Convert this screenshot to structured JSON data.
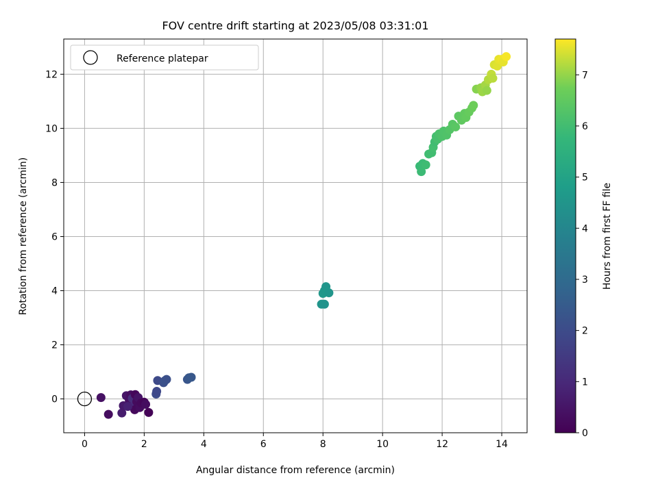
{
  "chart_data": {
    "type": "scatter",
    "title": "FOV centre drift starting at 2023/05/08 03:31:01",
    "xlabel": "Angular distance from reference (arcmin)",
    "ylabel": "Rotation from reference (arcmin)",
    "xlim": [
      -0.7,
      14.85
    ],
    "ylim": [
      -1.25,
      13.3
    ],
    "xticks": [
      0,
      2,
      4,
      6,
      8,
      10,
      12,
      14
    ],
    "yticks": [
      0,
      2,
      4,
      6,
      8,
      10,
      12
    ],
    "grid": true,
    "legend": {
      "placement": "top-left",
      "entries": [
        "Reference platepar"
      ]
    },
    "reference_point": {
      "x": 0,
      "y": 0,
      "marker": "hollow-circle"
    },
    "colorbar": {
      "label": "Hours from first FF file",
      "range": [
        0,
        7.7
      ],
      "ticks": [
        0,
        1,
        2,
        3,
        4,
        5,
        6,
        7
      ],
      "colormap": "viridis"
    },
    "series": [
      {
        "values_note": "",
        "points": [
          [
            0.55,
            0.05,
            0.4
          ],
          [
            0.8,
            -0.57,
            0.3
          ],
          [
            1.25,
            -0.52,
            0.7
          ],
          [
            1.3,
            -0.25,
            0.6
          ],
          [
            1.4,
            0.12,
            0.5
          ],
          [
            1.5,
            -0.05,
            0.35
          ],
          [
            1.55,
            0.15,
            0.3
          ],
          [
            1.6,
            0.02,
            1.1
          ],
          [
            1.62,
            -0.28,
            1.0
          ],
          [
            1.68,
            -0.4,
            0.2
          ],
          [
            1.7,
            0.16,
            0.15
          ],
          [
            1.75,
            -0.1,
            0.25
          ],
          [
            1.8,
            0.05,
            0.45
          ],
          [
            1.85,
            -0.32,
            0.3
          ],
          [
            1.9,
            -0.15,
            0.2
          ],
          [
            2.0,
            -0.12,
            0.1
          ],
          [
            2.05,
            -0.2,
            0.3
          ],
          [
            2.15,
            -0.5,
            0.05
          ],
          [
            1.45,
            -0.28,
            0.8
          ],
          [
            2.4,
            0.18,
            2.0
          ],
          [
            2.42,
            0.28,
            1.9
          ],
          [
            2.45,
            0.68,
            1.95
          ],
          [
            2.65,
            0.6,
            2.1
          ],
          [
            2.7,
            0.68,
            2.2
          ],
          [
            2.75,
            0.72,
            2.15
          ],
          [
            3.45,
            0.72,
            2.3
          ],
          [
            3.5,
            0.78,
            2.35
          ],
          [
            3.58,
            0.8,
            2.4
          ],
          [
            7.95,
            3.5,
            4.5
          ],
          [
            8.05,
            3.5,
            4.45
          ],
          [
            8.0,
            3.9,
            4.6
          ],
          [
            8.05,
            4.0,
            4.55
          ],
          [
            8.1,
            4.15,
            4.5
          ],
          [
            8.15,
            3.95,
            4.6
          ],
          [
            8.2,
            3.92,
            4.52
          ],
          [
            11.25,
            8.6,
            5.85
          ],
          [
            11.3,
            8.4,
            5.9
          ],
          [
            11.35,
            8.7,
            5.88
          ],
          [
            11.45,
            8.65,
            5.95
          ],
          [
            11.55,
            9.05,
            5.97
          ],
          [
            11.65,
            9.1,
            6.0
          ],
          [
            11.7,
            9.3,
            6.05
          ],
          [
            11.75,
            9.5,
            6.0
          ],
          [
            11.8,
            9.7,
            6.05
          ],
          [
            11.85,
            9.6,
            6.1
          ],
          [
            11.9,
            9.8,
            6.15
          ],
          [
            12.0,
            9.7,
            6.2
          ],
          [
            12.05,
            9.9,
            6.22
          ],
          [
            12.15,
            9.75,
            6.25
          ],
          [
            12.25,
            9.95,
            6.3
          ],
          [
            12.35,
            10.15,
            6.35
          ],
          [
            12.45,
            10.05,
            6.4
          ],
          [
            12.55,
            10.45,
            6.45
          ],
          [
            12.65,
            10.3,
            6.5
          ],
          [
            12.75,
            10.55,
            6.52
          ],
          [
            12.8,
            10.4,
            6.55
          ],
          [
            12.9,
            10.6,
            6.6
          ],
          [
            13.0,
            10.75,
            6.65
          ],
          [
            13.05,
            10.85,
            6.7
          ],
          [
            13.15,
            11.45,
            6.9
          ],
          [
            13.3,
            11.5,
            7.0
          ],
          [
            13.35,
            11.35,
            7.05
          ],
          [
            13.45,
            11.6,
            7.1
          ],
          [
            13.5,
            11.4,
            7.0
          ],
          [
            13.55,
            11.8,
            7.2
          ],
          [
            13.65,
            12.0,
            7.3
          ],
          [
            13.7,
            11.85,
            7.25
          ],
          [
            13.75,
            12.35,
            7.45
          ],
          [
            13.85,
            12.3,
            7.5
          ],
          [
            13.9,
            12.55,
            7.55
          ],
          [
            14.0,
            12.55,
            7.6
          ],
          [
            14.05,
            12.45,
            7.55
          ],
          [
            14.15,
            12.65,
            7.65
          ]
        ]
      }
    ]
  }
}
